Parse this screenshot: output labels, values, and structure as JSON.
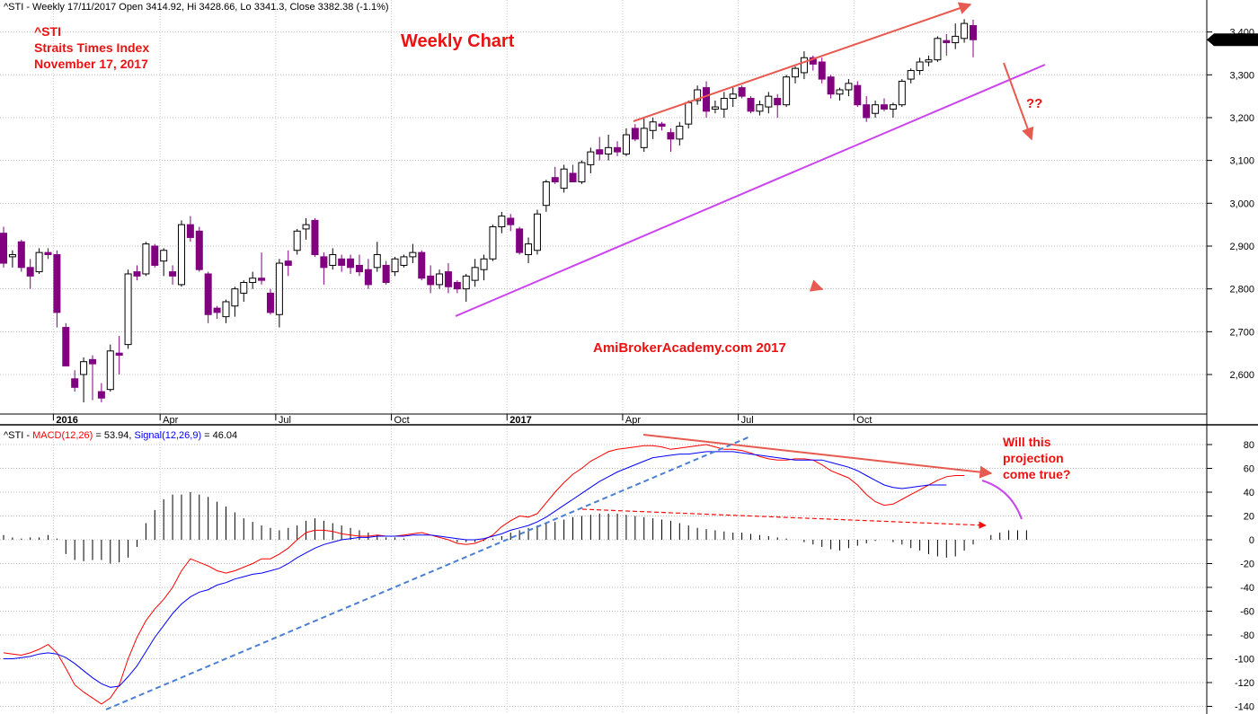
{
  "header": {
    "price_title": "^STI - Weekly 17/11/2017 Open 3414.92, Hi 3428.66, Lo 3341.3, Close 3382.38 (-1.1%)",
    "macd_prefix": "^STI - ",
    "macd_label": "MACD(12,26)",
    "macd_value": " = 53.94, ",
    "signal_label": "Signal(12,26,9)",
    "signal_value": " = 46.04"
  },
  "annotations": {
    "symbol": "^STI",
    "index_name": "Straits Times Index",
    "date": "November 17, 2017",
    "chart_title": "Weekly Chart",
    "watermark": "AmiBrokerAcademy.com  2017",
    "question": "??",
    "projection_note": [
      "Will this",
      "projection",
      "come true?"
    ]
  },
  "price_axis": {
    "labels": [
      "3,400",
      "3,300",
      "3,200",
      "3,100",
      "3,000",
      "2,900",
      "2,800",
      "2,700",
      "2,600"
    ],
    "last_label": "3,382.38"
  },
  "macd_axis": {
    "labels": [
      "80",
      "60",
      "40",
      "20",
      "0",
      "-20",
      "-40",
      "-60",
      "-80",
      "-100",
      "-120",
      "-140"
    ],
    "macd_last": "53.9438",
    "signal_last": "46.0393"
  },
  "date_axis": {
    "labels": [
      "2016",
      "Apr",
      "Jul",
      "Oct",
      "2017",
      "Apr",
      "Jul",
      "Oct"
    ]
  },
  "colors": {
    "bear_candle": "#800080",
    "bull_candle": "#ffffff",
    "macd_line": "#ff0000",
    "signal_line": "#0000ff",
    "channel_upper": "#e85a50",
    "channel_lower": "#cc44ee",
    "trend_dashed": "#4a7fd4",
    "text_red": "#ee1111"
  },
  "chart_data": [
    {
      "type": "candlestick",
      "title": "^STI - Weekly 17/11/2017 Open 3414.92, Hi 3428.66, Lo 3341.3, Close 3382.38 (-1.1%)",
      "ylim": [
        2500,
        3450
      ],
      "candles": [
        {
          "o": 2930,
          "h": 2945,
          "l": 2850,
          "c": 2860
        },
        {
          "o": 2875,
          "h": 2890,
          "l": 2850,
          "c": 2880
        },
        {
          "o": 2910,
          "h": 2915,
          "l": 2840,
          "c": 2850
        },
        {
          "o": 2850,
          "h": 2870,
          "l": 2800,
          "c": 2830
        },
        {
          "o": 2840,
          "h": 2895,
          "l": 2835,
          "c": 2885
        },
        {
          "o": 2885,
          "h": 2895,
          "l": 2870,
          "c": 2880
        },
        {
          "o": 2880,
          "h": 2890,
          "l": 2710,
          "c": 2745
        },
        {
          "o": 2710,
          "h": 2720,
          "l": 2620,
          "c": 2620
        },
        {
          "o": 2590,
          "h": 2610,
          "l": 2560,
          "c": 2570
        },
        {
          "o": 2600,
          "h": 2640,
          "l": 2535,
          "c": 2630
        },
        {
          "o": 2635,
          "h": 2645,
          "l": 2540,
          "c": 2625
        },
        {
          "o": 2560,
          "h": 2580,
          "l": 2535,
          "c": 2545
        },
        {
          "o": 2565,
          "h": 2670,
          "l": 2560,
          "c": 2655
        },
        {
          "o": 2650,
          "h": 2690,
          "l": 2600,
          "c": 2645
        },
        {
          "o": 2670,
          "h": 2845,
          "l": 2660,
          "c": 2835
        },
        {
          "o": 2840,
          "h": 2855,
          "l": 2820,
          "c": 2830
        },
        {
          "o": 2835,
          "h": 2910,
          "l": 2830,
          "c": 2905
        },
        {
          "o": 2900,
          "h": 2905,
          "l": 2850,
          "c": 2855
        },
        {
          "o": 2865,
          "h": 2895,
          "l": 2830,
          "c": 2890
        },
        {
          "o": 2840,
          "h": 2855,
          "l": 2810,
          "c": 2830
        },
        {
          "o": 2810,
          "h": 2960,
          "l": 2805,
          "c": 2950
        },
        {
          "o": 2950,
          "h": 2970,
          "l": 2910,
          "c": 2920
        },
        {
          "o": 2935,
          "h": 2945,
          "l": 2840,
          "c": 2845
        },
        {
          "o": 2835,
          "h": 2840,
          "l": 2720,
          "c": 2740
        },
        {
          "o": 2755,
          "h": 2760,
          "l": 2730,
          "c": 2745
        },
        {
          "o": 2735,
          "h": 2775,
          "l": 2720,
          "c": 2770
        },
        {
          "o": 2760,
          "h": 2805,
          "l": 2735,
          "c": 2800
        },
        {
          "o": 2790,
          "h": 2820,
          "l": 2770,
          "c": 2815
        },
        {
          "o": 2815,
          "h": 2840,
          "l": 2800,
          "c": 2825
        },
        {
          "o": 2825,
          "h": 2885,
          "l": 2810,
          "c": 2820
        },
        {
          "o": 2790,
          "h": 2800,
          "l": 2740,
          "c": 2745
        },
        {
          "o": 2740,
          "h": 2870,
          "l": 2710,
          "c": 2860
        },
        {
          "o": 2865,
          "h": 2890,
          "l": 2830,
          "c": 2855
        },
        {
          "o": 2890,
          "h": 2940,
          "l": 2880,
          "c": 2935
        },
        {
          "o": 2940,
          "h": 2965,
          "l": 2915,
          "c": 2950
        },
        {
          "o": 2960,
          "h": 2965,
          "l": 2875,
          "c": 2880
        },
        {
          "o": 2875,
          "h": 2885,
          "l": 2810,
          "c": 2850
        },
        {
          "o": 2855,
          "h": 2895,
          "l": 2845,
          "c": 2880
        },
        {
          "o": 2870,
          "h": 2880,
          "l": 2840,
          "c": 2855
        },
        {
          "o": 2870,
          "h": 2880,
          "l": 2835,
          "c": 2850
        },
        {
          "o": 2855,
          "h": 2880,
          "l": 2830,
          "c": 2840
        },
        {
          "o": 2845,
          "h": 2870,
          "l": 2800,
          "c": 2810
        },
        {
          "o": 2850,
          "h": 2910,
          "l": 2840,
          "c": 2880
        },
        {
          "o": 2855,
          "h": 2865,
          "l": 2810,
          "c": 2815
        },
        {
          "o": 2840,
          "h": 2875,
          "l": 2830,
          "c": 2870
        },
        {
          "o": 2855,
          "h": 2880,
          "l": 2850,
          "c": 2875
        },
        {
          "o": 2875,
          "h": 2905,
          "l": 2860,
          "c": 2885
        },
        {
          "o": 2885,
          "h": 2890,
          "l": 2820,
          "c": 2825
        },
        {
          "o": 2830,
          "h": 2855,
          "l": 2790,
          "c": 2810
        },
        {
          "o": 2810,
          "h": 2845,
          "l": 2800,
          "c": 2835
        },
        {
          "o": 2840,
          "h": 2860,
          "l": 2790,
          "c": 2805
        },
        {
          "o": 2815,
          "h": 2820,
          "l": 2790,
          "c": 2800
        },
        {
          "o": 2800,
          "h": 2835,
          "l": 2770,
          "c": 2830
        },
        {
          "o": 2820,
          "h": 2870,
          "l": 2805,
          "c": 2850
        },
        {
          "o": 2845,
          "h": 2880,
          "l": 2820,
          "c": 2870
        },
        {
          "o": 2870,
          "h": 2950,
          "l": 2865,
          "c": 2945
        },
        {
          "o": 2945,
          "h": 2980,
          "l": 2930,
          "c": 2970
        },
        {
          "o": 2965,
          "h": 2975,
          "l": 2935,
          "c": 2950
        },
        {
          "o": 2940,
          "h": 2945,
          "l": 2880,
          "c": 2885
        },
        {
          "o": 2880,
          "h": 2920,
          "l": 2860,
          "c": 2905
        },
        {
          "o": 2890,
          "h": 2985,
          "l": 2880,
          "c": 2975
        },
        {
          "o": 2995,
          "h": 3055,
          "l": 2980,
          "c": 3050
        },
        {
          "o": 3060,
          "h": 3085,
          "l": 3045,
          "c": 3050
        },
        {
          "o": 3035,
          "h": 3090,
          "l": 3025,
          "c": 3080
        },
        {
          "o": 3070,
          "h": 3090,
          "l": 3050,
          "c": 3050
        },
        {
          "o": 3050,
          "h": 3100,
          "l": 3045,
          "c": 3095
        },
        {
          "o": 3090,
          "h": 3130,
          "l": 3070,
          "c": 3120
        },
        {
          "o": 3125,
          "h": 3155,
          "l": 3100,
          "c": 3115
        },
        {
          "o": 3115,
          "h": 3160,
          "l": 3100,
          "c": 3130
        },
        {
          "o": 3130,
          "h": 3145,
          "l": 3110,
          "c": 3120
        },
        {
          "o": 3115,
          "h": 3175,
          "l": 3110,
          "c": 3160
        },
        {
          "o": 3175,
          "h": 3185,
          "l": 3145,
          "c": 3150
        },
        {
          "o": 3130,
          "h": 3200,
          "l": 3120,
          "c": 3175
        },
        {
          "o": 3170,
          "h": 3200,
          "l": 3150,
          "c": 3190
        },
        {
          "o": 3185,
          "h": 3190,
          "l": 3170,
          "c": 3180
        },
        {
          "o": 3165,
          "h": 3175,
          "l": 3120,
          "c": 3150
        },
        {
          "o": 3150,
          "h": 3190,
          "l": 3135,
          "c": 3180
        },
        {
          "o": 3185,
          "h": 3240,
          "l": 3175,
          "c": 3235
        },
        {
          "o": 3240,
          "h": 3275,
          "l": 3230,
          "c": 3265
        },
        {
          "o": 3270,
          "h": 3285,
          "l": 3200,
          "c": 3215
        },
        {
          "o": 3220,
          "h": 3240,
          "l": 3210,
          "c": 3225
        },
        {
          "o": 3220,
          "h": 3260,
          "l": 3200,
          "c": 3245
        },
        {
          "o": 3245,
          "h": 3270,
          "l": 3225,
          "c": 3255
        },
        {
          "o": 3270,
          "h": 3275,
          "l": 3245,
          "c": 3250
        },
        {
          "o": 3245,
          "h": 3250,
          "l": 3210,
          "c": 3215
        },
        {
          "o": 3215,
          "h": 3240,
          "l": 3205,
          "c": 3230
        },
        {
          "o": 3225,
          "h": 3260,
          "l": 3210,
          "c": 3250
        },
        {
          "o": 3245,
          "h": 3255,
          "l": 3200,
          "c": 3230
        },
        {
          "o": 3230,
          "h": 3300,
          "l": 3225,
          "c": 3295
        },
        {
          "o": 3295,
          "h": 3320,
          "l": 3280,
          "c": 3315
        },
        {
          "o": 3305,
          "h": 3355,
          "l": 3290,
          "c": 3340
        },
        {
          "o": 3340,
          "h": 3345,
          "l": 3310,
          "c": 3325
        },
        {
          "o": 3330,
          "h": 3340,
          "l": 3280,
          "c": 3290
        },
        {
          "o": 3295,
          "h": 3300,
          "l": 3245,
          "c": 3255
        },
        {
          "o": 3255,
          "h": 3270,
          "l": 3240,
          "c": 3265
        },
        {
          "o": 3265,
          "h": 3290,
          "l": 3250,
          "c": 3280
        },
        {
          "o": 3275,
          "h": 3285,
          "l": 3225,
          "c": 3230
        },
        {
          "o": 3230,
          "h": 3250,
          "l": 3190,
          "c": 3200
        },
        {
          "o": 3210,
          "h": 3240,
          "l": 3200,
          "c": 3230
        },
        {
          "o": 3230,
          "h": 3245,
          "l": 3215,
          "c": 3220
        },
        {
          "o": 3220,
          "h": 3235,
          "l": 3200,
          "c": 3230
        },
        {
          "o": 3230,
          "h": 3290,
          "l": 3225,
          "c": 3285
        },
        {
          "o": 3290,
          "h": 3315,
          "l": 3280,
          "c": 3310
        },
        {
          "o": 3310,
          "h": 3340,
          "l": 3300,
          "c": 3330
        },
        {
          "o": 3330,
          "h": 3345,
          "l": 3320,
          "c": 3335
        },
        {
          "o": 3335,
          "h": 3390,
          "l": 3330,
          "c": 3385
        },
        {
          "o": 3380,
          "h": 3395,
          "l": 3345,
          "c": 3375
        },
        {
          "o": 3375,
          "h": 3420,
          "l": 3360,
          "c": 3390
        },
        {
          "o": 3385,
          "h": 3430,
          "l": 3375,
          "c": 3420
        },
        {
          "o": 3415,
          "h": 3429,
          "l": 3341,
          "c": 3382
        }
      ]
    },
    {
      "type": "line",
      "title": "MACD(12,26) = 53.94, Signal(12,26,9) = 46.04",
      "ylim": [
        -140,
        95
      ],
      "series": [
        {
          "name": "MACD(12,26)",
          "values": [
            -95,
            -96,
            -97,
            -95,
            -92,
            -88,
            -95,
            -108,
            -122,
            -128,
            -133,
            -138,
            -133,
            -122,
            -100,
            -82,
            -68,
            -58,
            -50,
            -40,
            -26,
            -16,
            -19,
            -22,
            -26,
            -28,
            -26,
            -23,
            -20,
            -16,
            -16,
            -12,
            -7,
            0,
            6,
            8,
            8,
            7,
            5,
            4,
            3,
            3,
            4,
            3,
            3,
            4,
            5,
            6,
            4,
            2,
            0,
            -3,
            -4,
            -3,
            0,
            4,
            11,
            16,
            20,
            19,
            22,
            31,
            40,
            48,
            55,
            60,
            66,
            70,
            74,
            76,
            77,
            78,
            79,
            79,
            78,
            76,
            77,
            78,
            79,
            80,
            78,
            76,
            76,
            75,
            73,
            70,
            68,
            67,
            67,
            68,
            68,
            67,
            63,
            58,
            55,
            52,
            46,
            38,
            32,
            29,
            30,
            34,
            38,
            42,
            46,
            50,
            53,
            54,
            54
          ]
        },
        {
          "name": "Signal(12,26,9)",
          "values": [
            -100,
            -100,
            -99,
            -98,
            -96,
            -95,
            -96,
            -99,
            -104,
            -110,
            -116,
            -121,
            -124,
            -123,
            -115,
            -106,
            -94,
            -82,
            -72,
            -62,
            -54,
            -48,
            -44,
            -42,
            -38,
            -36,
            -33,
            -31,
            -29,
            -28,
            -26,
            -24,
            -20,
            -15,
            -11,
            -7,
            -4,
            -2,
            0,
            1,
            2,
            2,
            3,
            3,
            3,
            3,
            4,
            4,
            4,
            3,
            2,
            1,
            0,
            0,
            1,
            3,
            5,
            8,
            10,
            12,
            15,
            19,
            24,
            29,
            34,
            39,
            44,
            49,
            53,
            57,
            60,
            63,
            66,
            69,
            70,
            71,
            72,
            72,
            73,
            74,
            74,
            74,
            74,
            73,
            72,
            71,
            70,
            69,
            68,
            67,
            67,
            67,
            67,
            65,
            63,
            61,
            58,
            54,
            50,
            46,
            44,
            43,
            44,
            45,
            46,
            46,
            46
          ]
        }
      ]
    },
    {
      "type": "bar",
      "title": "MACD histogram",
      "values": [
        4,
        2,
        1,
        2,
        2,
        4,
        1,
        -12,
        -17,
        -18,
        -17,
        -17,
        -20,
        -19,
        -15,
        -6,
        14,
        25,
        34,
        38,
        38,
        40,
        38,
        36,
        32,
        28,
        23,
        18,
        15,
        12,
        10,
        8,
        10,
        12,
        16,
        18,
        16,
        14,
        12,
        10,
        8,
        6,
        4,
        2,
        2,
        1,
        0,
        0,
        0,
        0,
        0,
        -2,
        -2,
        -2,
        -1,
        1,
        3,
        6,
        8,
        10,
        12,
        14,
        15,
        17,
        19,
        20,
        21,
        22,
        22,
        22,
        21,
        20,
        19,
        18,
        17,
        16,
        14,
        12,
        10,
        9,
        8,
        7,
        6,
        6,
        5,
        4,
        3,
        2,
        1,
        0,
        -2,
        -4,
        -6,
        -8,
        -9,
        -7,
        -5,
        -3,
        -1,
        0,
        -2,
        -4,
        -7,
        -9,
        -12,
        -14,
        -15,
        -14,
        -9,
        -4,
        0,
        4,
        6,
        8,
        8,
        8
      ]
    }
  ]
}
